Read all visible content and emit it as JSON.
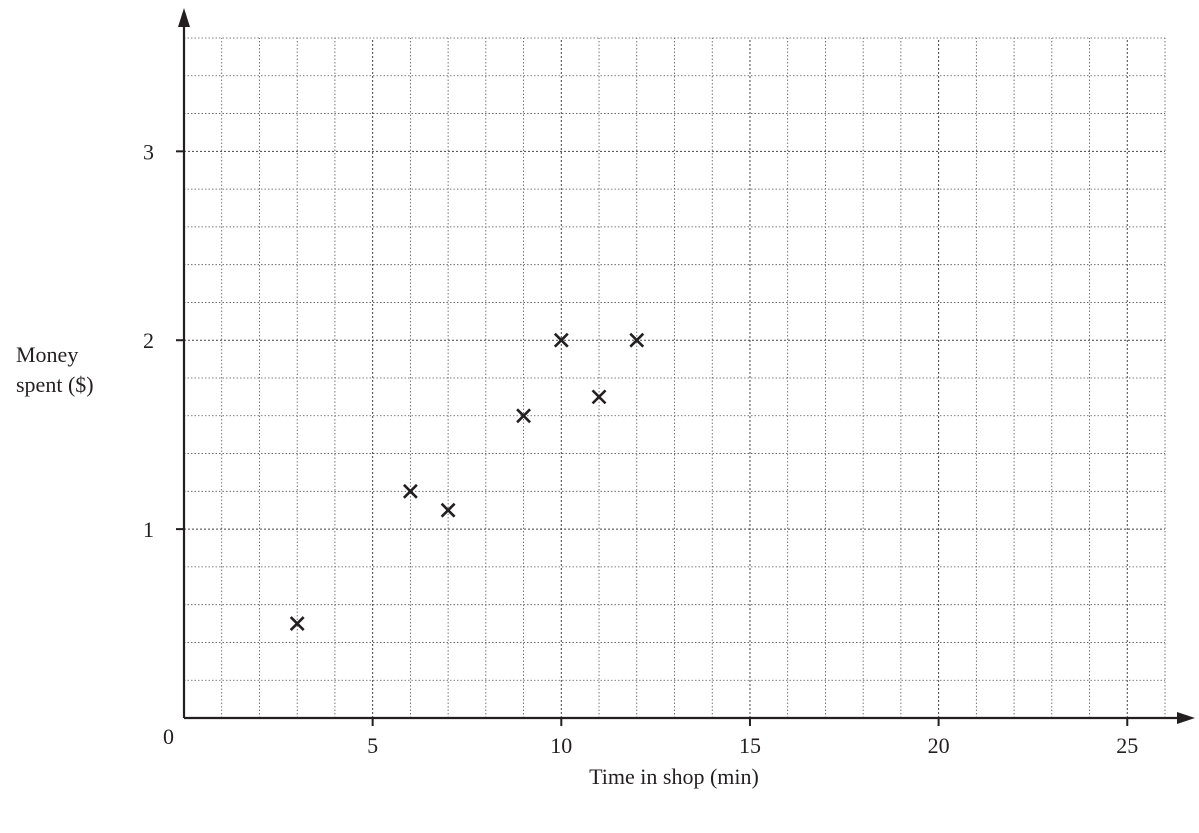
{
  "chart_data": {
    "type": "scatter",
    "title": "",
    "xlabel": "Time in shop (min)",
    "ylabel_lines": [
      "Money",
      "spent ($)"
    ],
    "xlim": [
      0,
      26
    ],
    "ylim": [
      0,
      3.6
    ],
    "x_ticks": [
      5,
      10,
      15,
      20,
      25
    ],
    "y_ticks": [
      1,
      2,
      3
    ],
    "origin_label": "0",
    "grid": true,
    "grid_minor_x": 1,
    "grid_minor_y": 0.2,
    "marker": "x",
    "color": "#231f20",
    "points": [
      {
        "x": 3,
        "y": 0.5
      },
      {
        "x": 6,
        "y": 1.2
      },
      {
        "x": 7,
        "y": 1.1
      },
      {
        "x": 9,
        "y": 1.6
      },
      {
        "x": 10,
        "y": 2.0
      },
      {
        "x": 11,
        "y": 1.7
      },
      {
        "x": 12,
        "y": 2.0
      }
    ]
  }
}
